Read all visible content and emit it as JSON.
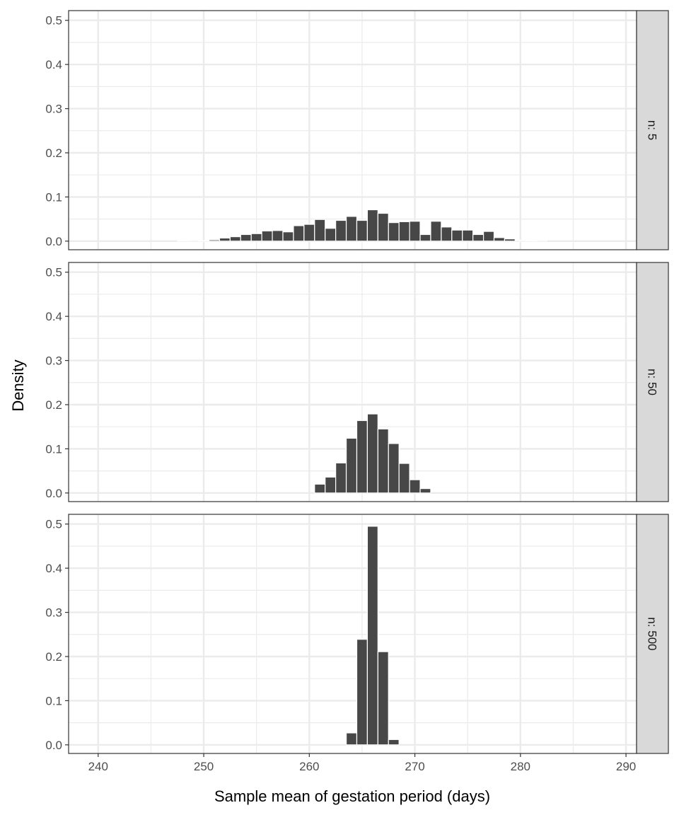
{
  "chart_data": {
    "type": "bar",
    "subtype": "faceted histogram",
    "xlabel": "Sample mean of gestation period (days)",
    "ylabel": "Density",
    "xlim": [
      237.2,
      291.0
    ],
    "ylim": [
      -0.0195,
      0.522
    ],
    "x_ticks": [
      240,
      250,
      260,
      270,
      280,
      290
    ],
    "y_ticks": [
      0.0,
      0.1,
      0.2,
      0.3,
      0.4,
      0.5
    ],
    "y_tick_labels": [
      "0.0",
      "0.1",
      "0.2",
      "0.3",
      "0.4",
      "0.5"
    ],
    "grid": true,
    "bar_color": "#474747",
    "facets": [
      {
        "label": "n: 5",
        "x": [
          248,
          249,
          250,
          251,
          252,
          253,
          254,
          255,
          256,
          257,
          258,
          259,
          260,
          261,
          262,
          263,
          264,
          265,
          266,
          267,
          268,
          269,
          270,
          271,
          272,
          273,
          274,
          275,
          276,
          277,
          278,
          279,
          280,
          281,
          282
        ],
        "values": [
          0.001,
          0.002,
          0.001,
          0.003,
          0.007,
          0.01,
          0.015,
          0.017,
          0.023,
          0.024,
          0.021,
          0.035,
          0.038,
          0.049,
          0.029,
          0.047,
          0.056,
          0.047,
          0.071,
          0.063,
          0.042,
          0.044,
          0.045,
          0.015,
          0.045,
          0.032,
          0.025,
          0.025,
          0.015,
          0.022,
          0.008,
          0.005,
          0.002,
          0.001,
          0.002
        ]
      },
      {
        "label": "n: 50",
        "x": [
          261,
          262,
          263,
          264,
          265,
          266,
          267,
          268,
          269,
          270,
          271
        ],
        "values": [
          0.02,
          0.036,
          0.068,
          0.124,
          0.164,
          0.179,
          0.145,
          0.112,
          0.067,
          0.03,
          0.01
        ]
      },
      {
        "label": "n: 500",
        "x": [
          264,
          265,
          266,
          267,
          268
        ],
        "values": [
          0.027,
          0.239,
          0.495,
          0.211,
          0.012
        ]
      }
    ]
  }
}
